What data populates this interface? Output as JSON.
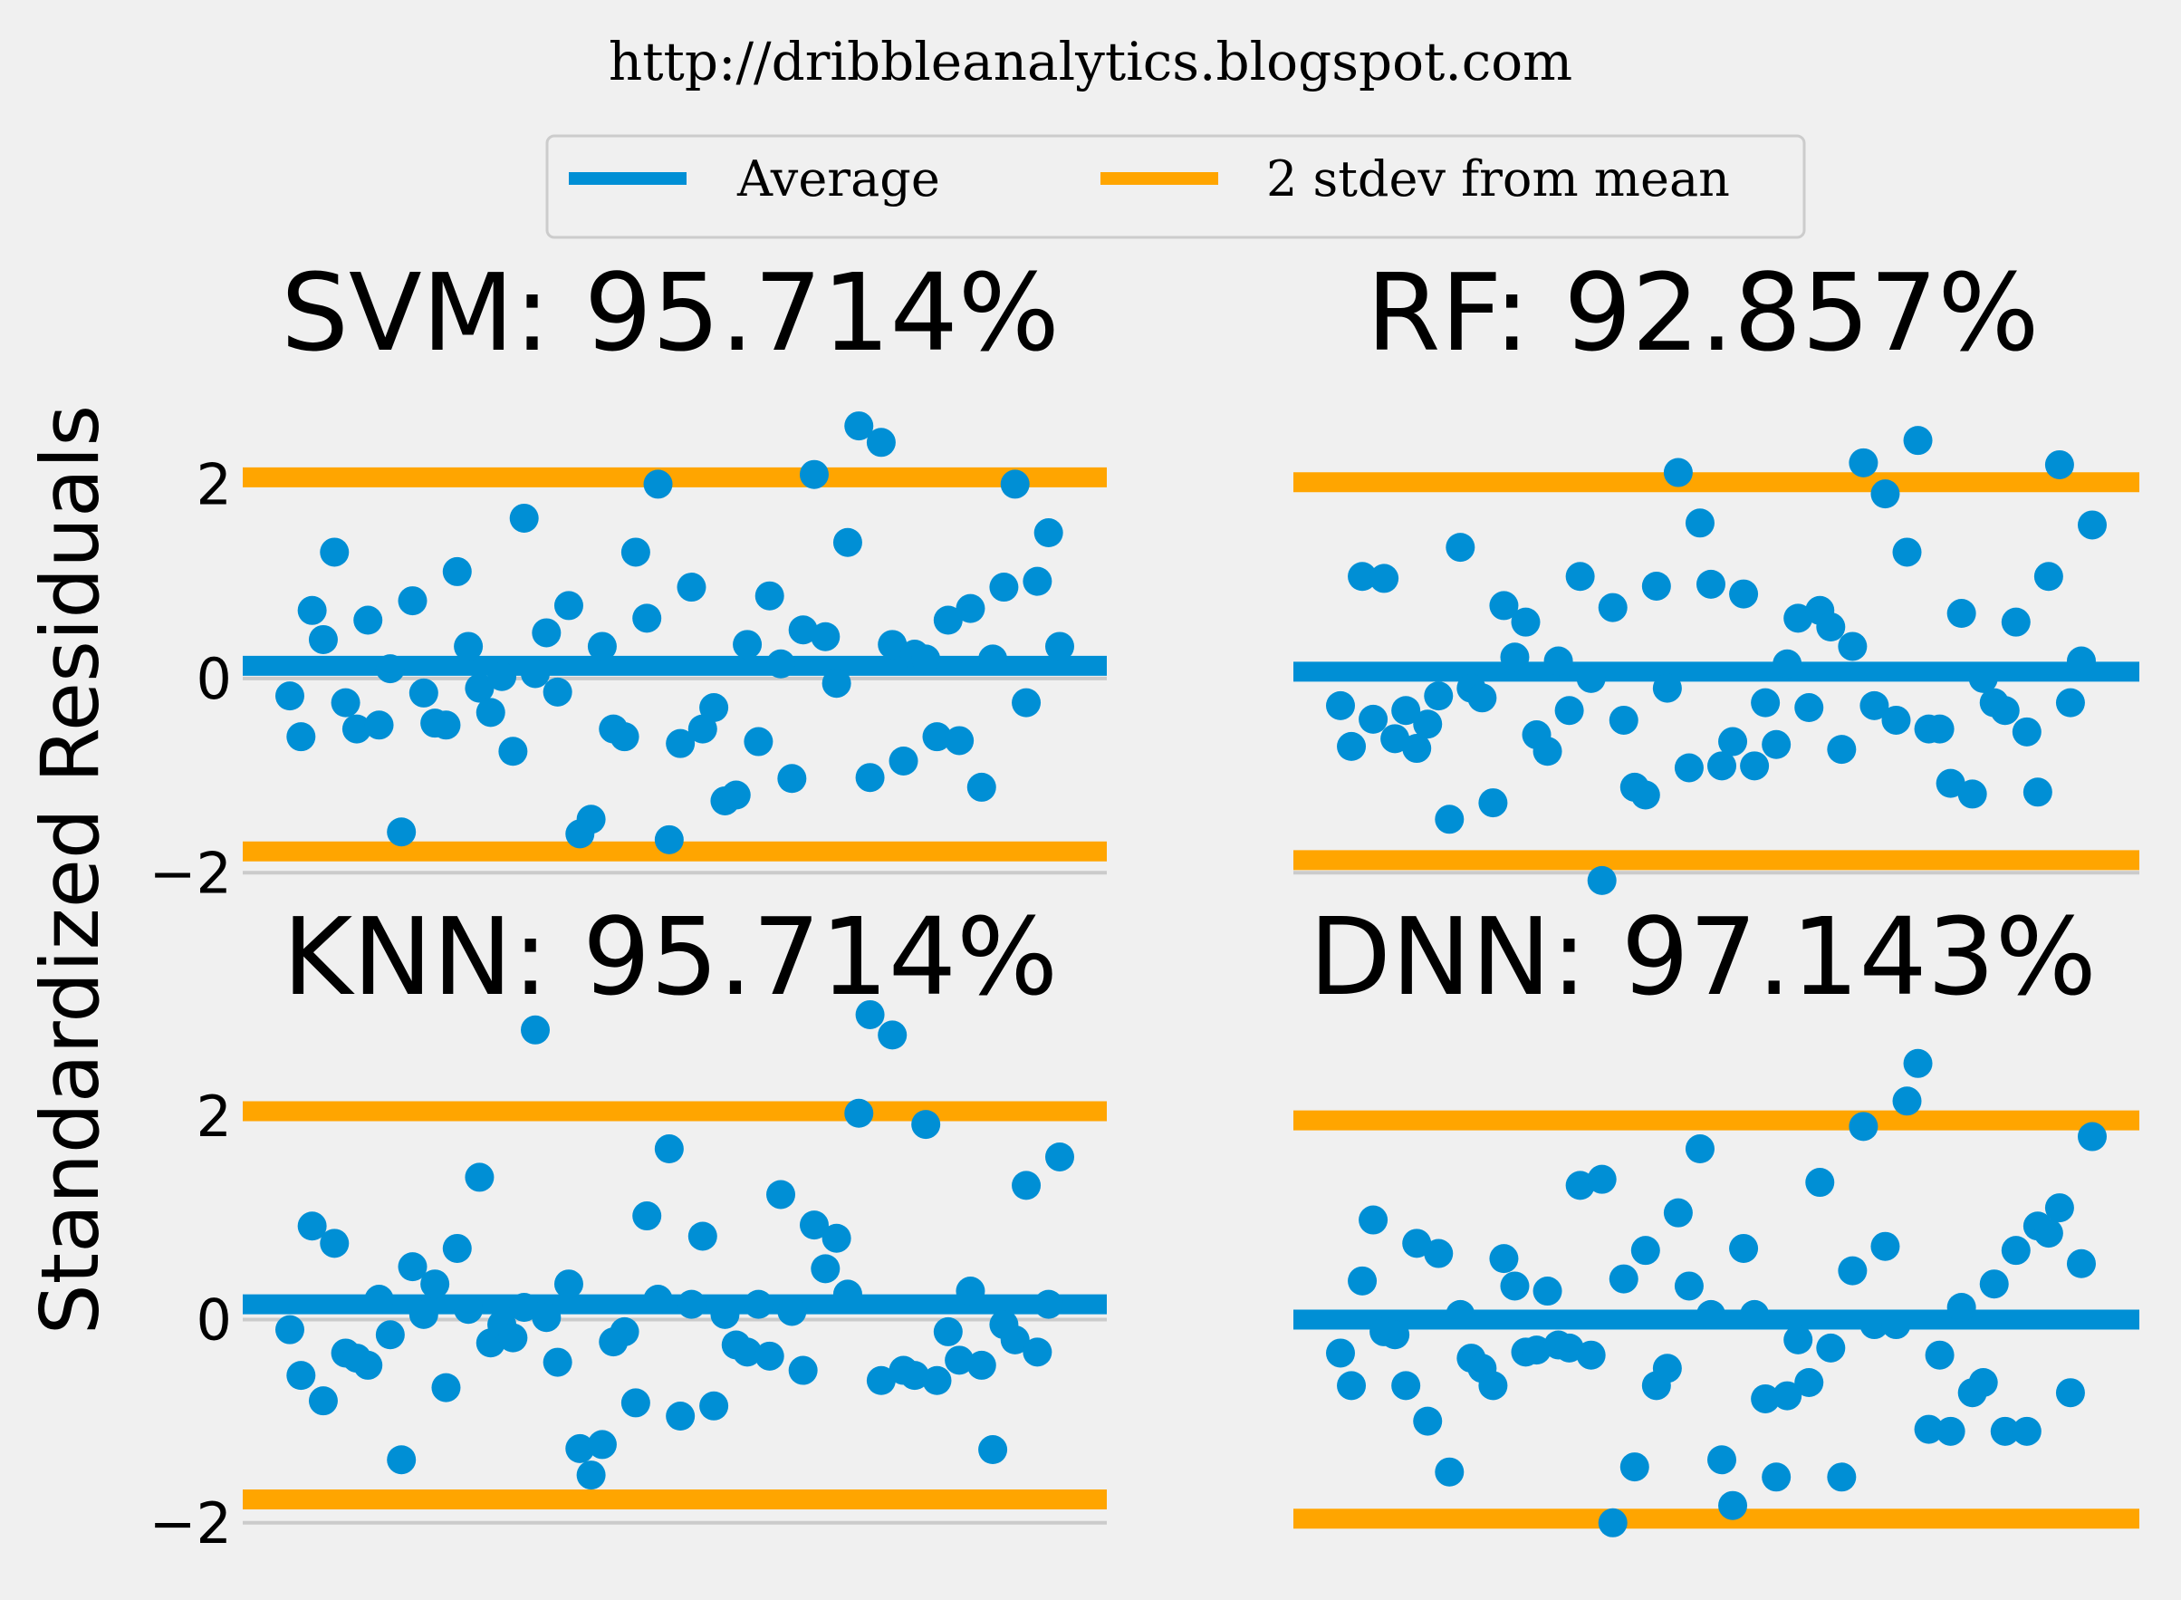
{
  "header": {
    "url": "http://dribbleanalytics.blogspot.com"
  },
  "legend": {
    "placement": "top-center",
    "items": [
      {
        "label": "Average",
        "color": "#008fd5"
      },
      {
        "label": "2 stdev from mean",
        "color": "#ffa500"
      }
    ]
  },
  "colors": {
    "background": "#f0f0f0",
    "points": "#008fd5",
    "average": "#008fd5",
    "stdev": "#ffa500",
    "grid": "#cbcbcb"
  },
  "chart_data": [
    {
      "type": "scatter",
      "title": "SVM: 95.714%",
      "ylabel": "Standardized Residuals",
      "ylim": [
        -2.1,
        2.75
      ],
      "yticks": [
        -2,
        0,
        2
      ],
      "yticks_labels": [
        "−2",
        "0",
        "2"
      ],
      "grid": true,
      "average": 0.13,
      "stdev_bounds": [
        -1.78,
        2.07
      ],
      "x": [
        1,
        2,
        3,
        4,
        5,
        6,
        7,
        8,
        9,
        10,
        11,
        12,
        13,
        14,
        15,
        16,
        17,
        18,
        19,
        20,
        21,
        22,
        23,
        24,
        25,
        26,
        27,
        28,
        29,
        30,
        31,
        32,
        33,
        34,
        35,
        36,
        37,
        38,
        39,
        40,
        41,
        42,
        43,
        44,
        45,
        46,
        47,
        48,
        49,
        50,
        51,
        52,
        53,
        54,
        55,
        56,
        57,
        58,
        59,
        60,
        61,
        62,
        63,
        64,
        65,
        66,
        67,
        68,
        69,
        70
      ],
      "values": [
        -0.18,
        -0.6,
        0.7,
        0.4,
        1.3,
        -0.25,
        -0.52,
        0.6,
        -0.48,
        0.1,
        -1.58,
        0.8,
        -0.15,
        -0.46,
        -0.48,
        1.1,
        0.33,
        -0.1,
        -0.35,
        0.02,
        -0.75,
        1.65,
        0.05,
        0.47,
        -0.14,
        0.75,
        -1.6,
        -1.45,
        0.33,
        -0.52,
        -0.6,
        1.3,
        0.62,
        2.0,
        -1.66,
        -0.67,
        0.94,
        -0.52,
        -0.3,
        -1.26,
        -1.2,
        0.35,
        -0.65,
        0.85,
        0.15,
        -1.03,
        0.5,
        2.1,
        0.43,
        -0.05,
        1.4,
        2.6,
        -1.02,
        2.43,
        0.35,
        -0.85,
        0.25,
        0.2,
        -0.6,
        0.6,
        -0.64,
        0.72,
        -1.12,
        0.2,
        0.94,
        2.0,
        -0.25,
        1.0,
        1.5,
        0.33
      ]
    },
    {
      "type": "scatter",
      "title": "RF: 92.857%",
      "ylim": [
        -2.1,
        2.75
      ],
      "yticks": [
        -2,
        0,
        2
      ],
      "grid": true,
      "average": 0.07,
      "stdev_bounds": [
        -1.87,
        2.02
      ],
      "x": [
        1,
        2,
        3,
        4,
        5,
        6,
        7,
        8,
        9,
        10,
        11,
        12,
        13,
        14,
        15,
        16,
        17,
        18,
        19,
        20,
        21,
        22,
        23,
        24,
        25,
        26,
        27,
        28,
        29,
        30,
        31,
        32,
        33,
        34,
        35,
        36,
        37,
        38,
        39,
        40,
        41,
        42,
        43,
        44,
        45,
        46,
        47,
        48,
        49,
        50,
        51,
        52,
        53,
        54,
        55,
        56,
        57,
        58,
        59,
        60,
        61,
        62,
        63,
        64,
        65,
        66,
        67,
        68,
        69,
        70
      ],
      "values": [
        -0.28,
        -0.7,
        1.05,
        -0.42,
        1.03,
        -0.62,
        -0.33,
        -0.72,
        -0.47,
        -0.18,
        -1.45,
        1.35,
        -0.1,
        -0.2,
        -1.28,
        0.75,
        0.22,
        0.58,
        -0.58,
        -0.75,
        0.18,
        -0.33,
        1.05,
        0.0,
        -2.08,
        0.73,
        -0.43,
        -1.12,
        -1.2,
        0.95,
        -0.1,
        2.12,
        -0.92,
        1.6,
        0.97,
        -0.9,
        -0.65,
        0.87,
        -0.9,
        -0.25,
        -0.68,
        0.15,
        0.62,
        -0.3,
        0.7,
        0.53,
        -0.73,
        0.33,
        2.22,
        -0.28,
        1.9,
        -0.43,
        1.3,
        2.45,
        -0.52,
        -0.52,
        -1.08,
        0.67,
        -1.19,
        0.0,
        -0.25,
        -0.33,
        0.58,
        -0.55,
        -1.17,
        1.05,
        2.2,
        -0.25,
        0.18,
        1.58
      ]
    },
    {
      "type": "scatter",
      "title": "KNN: 95.714%",
      "ylim": [
        -2.1,
        2.75
      ],
      "yticks": [
        -2,
        0,
        2
      ],
      "yticks_labels": [
        "−2",
        "0",
        "2"
      ],
      "grid": true,
      "average": 0.15,
      "stdev_bounds": [
        -1.77,
        2.05
      ],
      "x": [
        1,
        2,
        3,
        4,
        5,
        6,
        7,
        8,
        9,
        10,
        11,
        12,
        13,
        14,
        15,
        16,
        17,
        18,
        19,
        20,
        21,
        22,
        23,
        24,
        25,
        26,
        27,
        28,
        29,
        30,
        31,
        32,
        33,
        34,
        35,
        36,
        37,
        38,
        39,
        40,
        41,
        42,
        43,
        44,
        45,
        46,
        47,
        48,
        49,
        50,
        51,
        52,
        53,
        54,
        55,
        56,
        57,
        58,
        59,
        60,
        61,
        62,
        63,
        64,
        65,
        66,
        67,
        68,
        69,
        70
      ],
      "values": [
        -0.1,
        -0.55,
        0.92,
        -0.8,
        0.75,
        -0.33,
        -0.38,
        -0.45,
        0.2,
        -0.15,
        -1.38,
        0.52,
        0.05,
        0.35,
        -0.67,
        0.7,
        0.1,
        1.4,
        -0.23,
        -0.05,
        -0.18,
        0.12,
        2.85,
        0.02,
        -0.42,
        0.35,
        -1.27,
        -1.53,
        -1.23,
        -0.22,
        -0.12,
        -0.82,
        1.02,
        0.2,
        1.68,
        -0.95,
        0.15,
        0.82,
        -0.85,
        0.05,
        -0.25,
        -0.32,
        0.15,
        -0.36,
        1.23,
        0.08,
        -0.5,
        0.93,
        0.5,
        0.8,
        0.25,
        2.03,
        3.0,
        -0.6,
        2.8,
        -0.5,
        -0.55,
        1.92,
        -0.6,
        -0.12,
        -0.4,
        0.28,
        -0.45,
        -1.28,
        -0.05,
        -0.2,
        1.32,
        -0.32,
        0.15,
        1.6
      ]
    },
    {
      "type": "scatter",
      "title": "DNN: 97.143%",
      "ylim": [
        -2.1,
        2.75
      ],
      "yticks": [
        -2,
        0,
        2
      ],
      "grid": true,
      "average": 0.0,
      "stdev_bounds": [
        -1.96,
        1.96
      ],
      "x": [
        1,
        2,
        3,
        4,
        5,
        6,
        7,
        8,
        9,
        10,
        11,
        12,
        13,
        14,
        15,
        16,
        17,
        18,
        19,
        20,
        21,
        22,
        23,
        24,
        25,
        26,
        27,
        28,
        29,
        30,
        31,
        32,
        33,
        34,
        35,
        36,
        37,
        38,
        39,
        40,
        41,
        42,
        43,
        44,
        45,
        46,
        47,
        48,
        49,
        50,
        51,
        52,
        53,
        54,
        55,
        56,
        57,
        58,
        59,
        60,
        61,
        62,
        63,
        64,
        65,
        66,
        67,
        68,
        69,
        70
      ],
      "values": [
        -0.33,
        -0.65,
        0.38,
        0.98,
        -0.12,
        -0.15,
        -0.65,
        0.75,
        -1.0,
        0.65,
        -1.5,
        0.05,
        -0.38,
        -0.48,
        -0.65,
        0.6,
        0.33,
        -0.32,
        -0.3,
        0.28,
        -0.25,
        -0.28,
        1.32,
        -0.35,
        1.38,
        -2.0,
        0.4,
        -1.45,
        0.68,
        -0.65,
        -0.48,
        1.05,
        0.33,
        1.68,
        0.05,
        -1.38,
        -1.83,
        0.7,
        0.05,
        -0.78,
        -1.55,
        -0.75,
        -0.2,
        -0.62,
        1.35,
        -0.28,
        -1.55,
        0.48,
        1.9,
        -0.05,
        0.72,
        -0.05,
        2.15,
        2.52,
        -1.08,
        -0.35,
        -1.1,
        0.12,
        -0.72,
        -0.62,
        0.35,
        -1.1,
        0.68,
        -1.1,
        0.92,
        0.85,
        1.1,
        -0.72,
        0.55,
        1.8
      ]
    }
  ]
}
